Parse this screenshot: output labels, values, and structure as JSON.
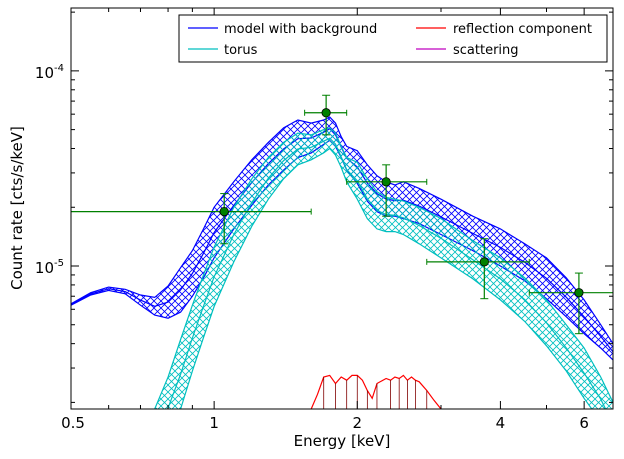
{
  "chart_data": {
    "type": "line",
    "xlabel": "Energy [keV]",
    "ylabel": "Count rate [cts/s/keV]",
    "x_scale": "log",
    "y_scale": "log",
    "xlim": [
      0.5,
      6.9
    ],
    "ylim": [
      1.85e-06,
      0.00021
    ],
    "x_ticks": [
      {
        "value": 0.5,
        "label": "0.5"
      },
      {
        "value": 1,
        "label": "1"
      },
      {
        "value": 2,
        "label": "2"
      },
      {
        "value": 4,
        "label": "4"
      },
      {
        "value": 6,
        "label": "6"
      }
    ],
    "y_ticks": [
      {
        "value": 1e-05,
        "base": "10",
        "exp": "-5"
      },
      {
        "value": 0.0001,
        "base": "10",
        "exp": "-4"
      }
    ],
    "legend": {
      "placement": "top-right",
      "entries": [
        {
          "label": "model with background",
          "color": "#0000ff"
        },
        {
          "label": "reflection component",
          "color": "#ff0000"
        },
        {
          "label": "torus",
          "color": "#00bfbf"
        },
        {
          "label": "scattering",
          "color": "#bf00bf"
        }
      ]
    },
    "series": [
      {
        "name": "model with background",
        "color": "#0000ff",
        "x": [
          0.5,
          0.55,
          0.6,
          0.65,
          0.7,
          0.75,
          0.8,
          0.85,
          0.9,
          0.95,
          1.0,
          1.1,
          1.2,
          1.3,
          1.4,
          1.5,
          1.6,
          1.7,
          1.75,
          1.8,
          1.85,
          1.9,
          2.0,
          2.1,
          2.2,
          2.3,
          2.4,
          2.5,
          2.7,
          3.0,
          3.5,
          4.0,
          4.5,
          5.0,
          5.5,
          6.0,
          6.5,
          6.9
        ],
        "upper": [
          6.4e-06,
          7.3e-06,
          7.8e-06,
          7.6e-06,
          7.1e-06,
          6.9e-06,
          7.9e-06,
          9.8e-06,
          1.2e-05,
          1.55e-05,
          2e-05,
          2.7e-05,
          3.5e-05,
          4.3e-05,
          5.1e-05,
          5.6e-05,
          5.4e-05,
          5.6e-05,
          5.8e-05,
          5.4e-05,
          4.6e-05,
          4.1e-05,
          3.9e-05,
          3.3e-05,
          2.9e-05,
          2.7e-05,
          2.6e-05,
          2.7e-05,
          2.5e-05,
          2.2e-05,
          1.8e-05,
          1.55e-05,
          1.3e-05,
          1.1e-05,
          8.7e-06,
          6.7e-06,
          5e-06,
          4e-06
        ],
        "lower": [
          6.3e-06,
          7.1e-06,
          7.5e-06,
          7.2e-06,
          6.3e-06,
          5.6e-06,
          5.4e-06,
          5.8e-06,
          7e-06,
          8.7e-06,
          1.1e-05,
          1.55e-05,
          2.05e-05,
          2.6e-05,
          3.1e-05,
          3.6e-05,
          3.8e-05,
          4.2e-05,
          4.4e-05,
          4.1e-05,
          3.6e-05,
          3.1e-05,
          2.65e-05,
          2.15e-05,
          1.9e-05,
          1.8e-05,
          1.8e-05,
          1.75e-05,
          1.65e-05,
          1.45e-05,
          1.2e-05,
          1e-05,
          8.4e-06,
          6.8e-06,
          5.5e-06,
          4.5e-06,
          3.8e-06,
          3.3e-06
        ]
      },
      {
        "name": "torus",
        "color": "#00bfbf",
        "x": [
          0.75,
          0.8,
          0.85,
          0.9,
          0.95,
          1.0,
          1.1,
          1.2,
          1.3,
          1.4,
          1.5,
          1.6,
          1.7,
          1.75,
          1.8,
          1.85,
          1.9,
          2.0,
          2.1,
          2.2,
          2.3,
          2.4,
          2.5,
          2.7,
          3.0,
          3.5,
          4.0,
          4.5,
          5.0,
          5.5,
          6.0,
          6.5,
          6.9
        ],
        "upper": [
          1.85e-06,
          2.7e-06,
          4.2e-06,
          6.3e-06,
          9e-06,
          1.25e-05,
          2e-05,
          2.8e-05,
          3.6e-05,
          4.3e-05,
          4.8e-05,
          4.7e-05,
          5e-05,
          5.1e-05,
          4.8e-05,
          4.1e-05,
          3.6e-05,
          3.4e-05,
          2.8e-05,
          2.4e-05,
          2.25e-05,
          2.2e-05,
          2.15e-05,
          2e-05,
          1.75e-05,
          1.35e-05,
          1.1e-05,
          8.7e-06,
          6.7e-06,
          5e-06,
          3.8e-06,
          2.7e-06,
          2e-06
        ],
        "lower": [
          1e-06,
          1.3e-06,
          1.85e-06,
          2.9e-06,
          4.3e-06,
          6.2e-06,
          1.05e-05,
          1.6e-05,
          2.2e-05,
          2.8e-05,
          3.3e-05,
          3.5e-05,
          3.8e-05,
          4e-05,
          3.7e-05,
          3.2e-05,
          2.7e-05,
          2.2e-05,
          1.75e-05,
          1.55e-05,
          1.5e-05,
          1.5e-05,
          1.45e-05,
          1.3e-05,
          1.1e-05,
          8.6e-06,
          6.7e-06,
          5.2e-06,
          3.9e-06,
          2.9e-06,
          2.1e-06,
          1.6e-06,
          1.2e-06
        ]
      },
      {
        "name": "reflection component",
        "color": "#ff0000",
        "x": [
          1.6,
          1.65,
          1.7,
          1.75,
          1.8,
          1.85,
          1.9,
          1.95,
          2.0,
          2.05,
          2.1,
          2.15,
          2.2,
          2.3,
          2.35,
          2.4,
          2.45,
          2.5,
          2.55,
          2.6,
          2.65,
          2.7,
          2.8,
          2.9,
          3.0
        ],
        "y": [
          1.85e-06,
          2.2e-06,
          2.7e-06,
          2.75e-06,
          2.5e-06,
          2.7e-06,
          2.6e-06,
          2.75e-06,
          2.75e-06,
          2.6e-06,
          2.3e-06,
          2.1e-06,
          2.5e-06,
          2.65e-06,
          2.6e-06,
          2.7e-06,
          2.65e-06,
          2.75e-06,
          2.6e-06,
          2.7e-06,
          2.6e-06,
          2.55e-06,
          2.3e-06,
          2.05e-06,
          1.85e-06
        ]
      }
    ],
    "data_points": [
      {
        "x": 1.05,
        "y": 1.9e-05,
        "xerr": [
          0.5,
          1.6
        ],
        "yerr": [
          1.3e-05,
          2.35e-05
        ]
      },
      {
        "x": 1.72,
        "y": 6.1e-05,
        "xerr": [
          1.55,
          1.9
        ],
        "yerr": [
          4.7e-05,
          7.5e-05
        ]
      },
      {
        "x": 2.3,
        "y": 2.7e-05,
        "xerr": [
          1.9,
          2.8
        ],
        "yerr": [
          1.8e-05,
          3.3e-05
        ]
      },
      {
        "x": 3.7,
        "y": 1.05e-05,
        "xerr": [
          2.8,
          4.6
        ],
        "yerr": [
          6.8e-06,
          1.38e-05
        ]
      },
      {
        "x": 5.85,
        "y": 7.3e-06,
        "xerr": [
          4.6,
          6.9
        ],
        "yerr": [
          4.5e-06,
          9.2e-06
        ]
      }
    ],
    "data_point_color": "#008000"
  }
}
